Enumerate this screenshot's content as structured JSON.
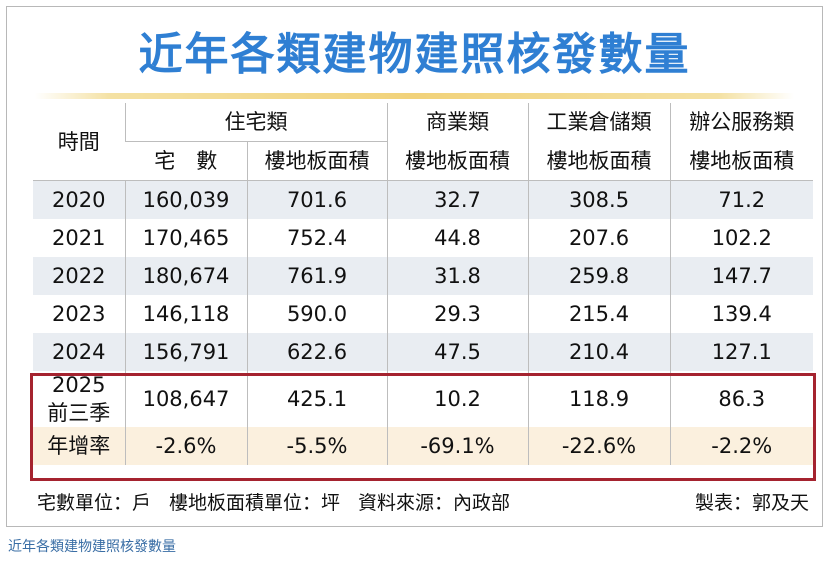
{
  "title": "近年各類建物建照核發數量",
  "header": {
    "period": "時間",
    "groups": [
      "住宅類",
      "商業類",
      "工業倉儲類",
      "辦公服務類"
    ],
    "sub": [
      "宅　數",
      "樓地板面積",
      "樓地板面積",
      "樓地板面積",
      "樓地板面積"
    ]
  },
  "rows": [
    {
      "year": "2020",
      "cells": [
        "160,039",
        "701.6",
        "32.7",
        "308.5",
        "71.2"
      ]
    },
    {
      "year": "2021",
      "cells": [
        "170,465",
        "752.4",
        "44.8",
        "207.6",
        "102.2"
      ]
    },
    {
      "year": "2022",
      "cells": [
        "180,674",
        "761.9",
        "31.8",
        "259.8",
        "147.7"
      ]
    },
    {
      "year": "2023",
      "cells": [
        "146,118",
        "590.0",
        "29.3",
        "215.4",
        "139.4"
      ]
    },
    {
      "year": "2024",
      "cells": [
        "156,791",
        "622.6",
        "47.5",
        "210.4",
        "127.1"
      ]
    }
  ],
  "row2025": {
    "year_line1": "2025",
    "year_line2": "前三季",
    "cells": [
      "108,647",
      "425.1",
      "10.2",
      "118.9",
      "86.3"
    ]
  },
  "growth": {
    "label": "年增率",
    "cells": [
      "-2.6%",
      "-5.5%",
      "-69.1%",
      "-22.6%",
      "-2.2%"
    ]
  },
  "footer": {
    "unit_houses": "宅數單位：戶",
    "unit_floor": "樓地板面積單位：坪",
    "source": "資料來源：內政部",
    "credit": "製表：郭及天"
  },
  "caption": "近年各類建物建照核發數量",
  "colors": {
    "title": "#2f7fd3",
    "highlight": "#a5232f",
    "row_shade": "#e9edf2",
    "growth_bg": "#fbf0de"
  }
}
